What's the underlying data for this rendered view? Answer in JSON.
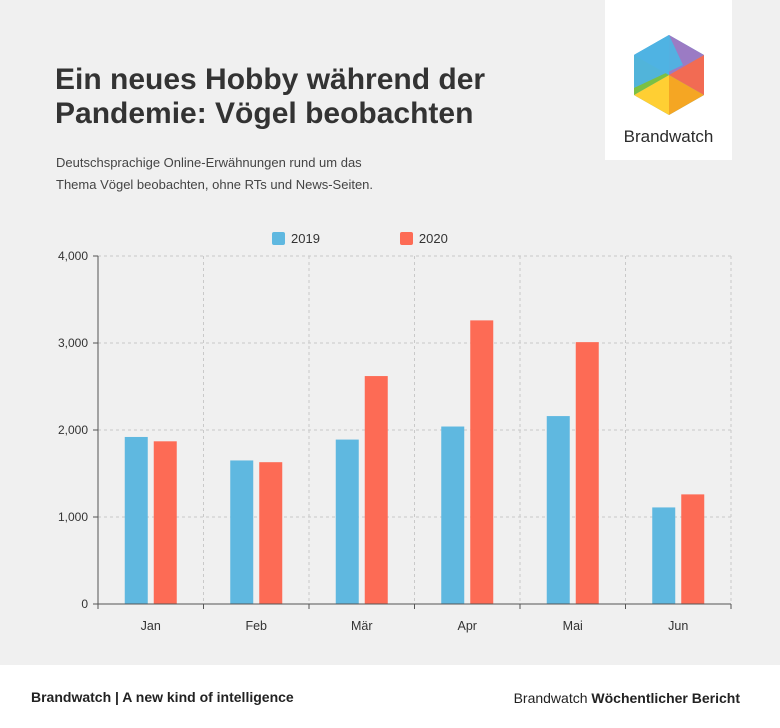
{
  "header": {
    "title": "Ein neues Hobby während der Pandemie: Vögel beobachten",
    "subtitle_line1": "Deutschsprachige Online-Erwähnungen rund um das",
    "subtitle_line2": "Thema Vögel beobachten, ohne RTs und News-Seiten."
  },
  "logo": {
    "text": "Brandwatch",
    "colors": [
      "#9b7bc4",
      "#4fb3e3",
      "#f26b53",
      "#f5a623",
      "#7bc043",
      "#ffcf33"
    ]
  },
  "footer": {
    "left": "Brandwatch | A new kind of intelligence",
    "right_prefix": "Brandwatch",
    "right_bold": "Wöchentlicher Bericht"
  },
  "chart_data": {
    "type": "bar",
    "title": "Ein neues Hobby während der Pandemie: Vögel beobachten",
    "categories": [
      "Jan",
      "Feb",
      "Mär",
      "Apr",
      "Mai",
      "Jun"
    ],
    "series": [
      {
        "name": "2019",
        "color": "#5fb8e0",
        "values": [
          1920,
          1650,
          1890,
          2040,
          2160,
          1110
        ]
      },
      {
        "name": "2020",
        "color": "#fd6b55",
        "values": [
          1870,
          1630,
          2620,
          3260,
          3010,
          1260
        ]
      }
    ],
    "yticks": [
      0,
      1000,
      2000,
      3000,
      4000
    ],
    "ytick_labels": [
      "0",
      "1,000",
      "2,000",
      "3,000",
      "4,000"
    ],
    "ylim": [
      0,
      4000
    ],
    "xlabel": "",
    "ylabel": "",
    "grid": true,
    "legend": "top-center"
  }
}
